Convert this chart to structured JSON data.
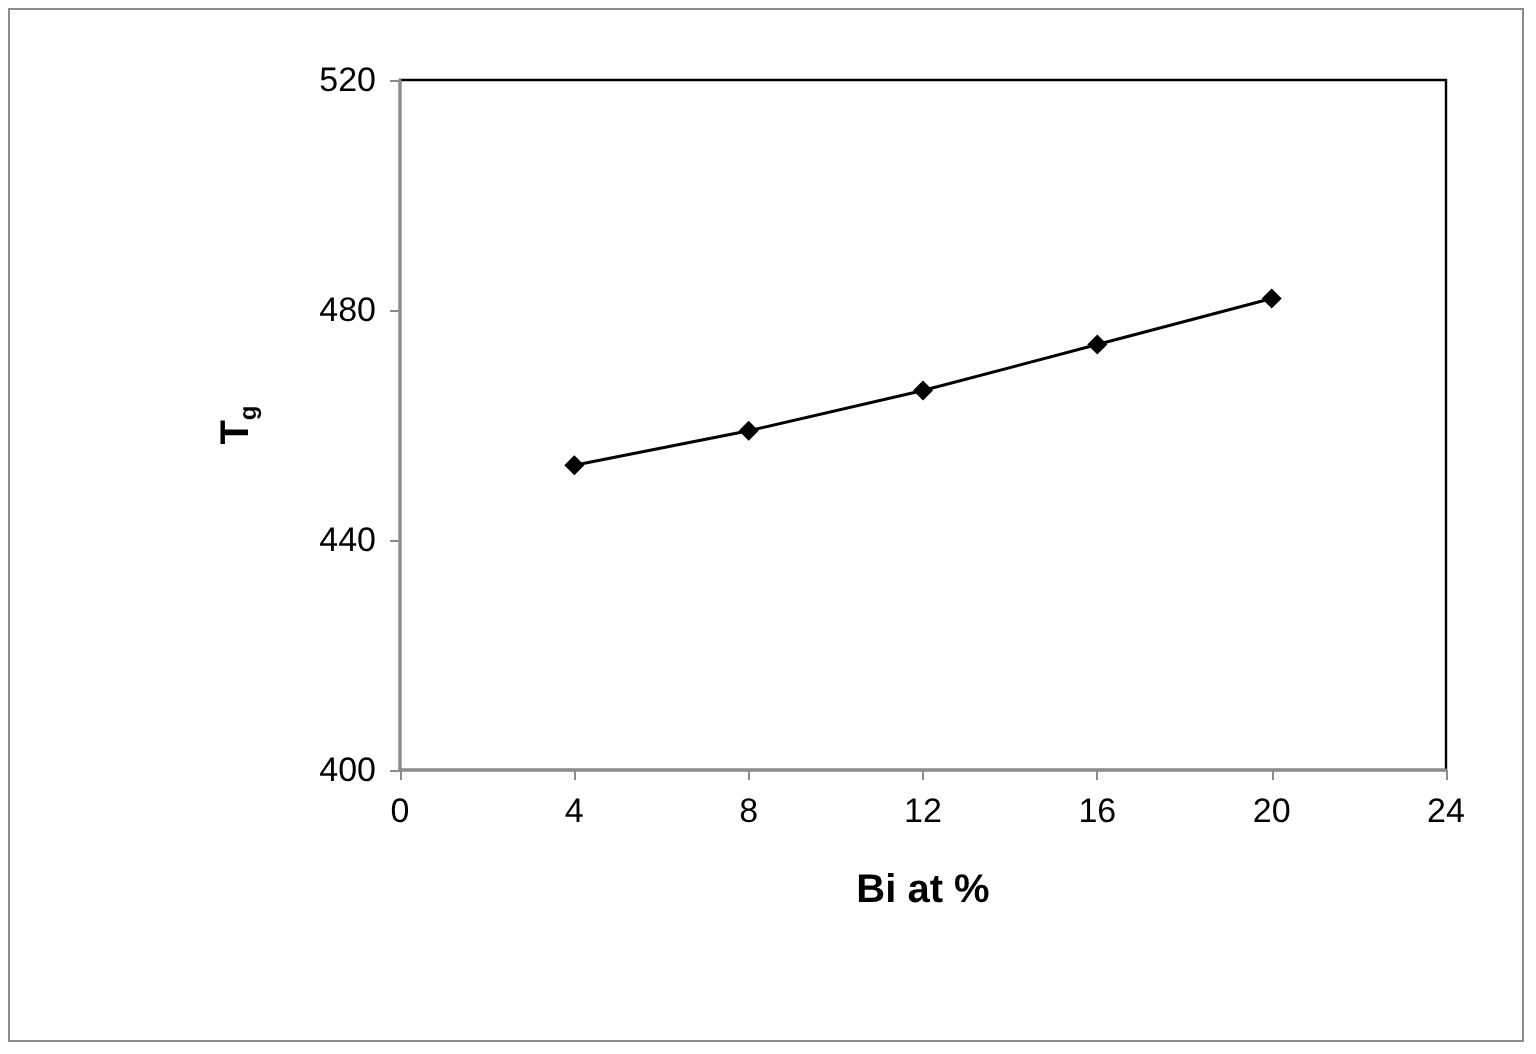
{
  "chart_data": {
    "type": "line",
    "xlabel": "Bi at %",
    "ylabel": "T$_{g}$",
    "x": [
      4,
      8,
      12,
      16,
      20
    ],
    "series": [
      {
        "color": "#000000",
        "values": [
          453,
          459,
          466,
          474,
          482
        ]
      }
    ],
    "xlim": [
      0,
      24
    ],
    "xticks": [
      0,
      4,
      8,
      12,
      16,
      20,
      24
    ],
    "ylim": [
      400,
      520
    ],
    "yticks": [
      400,
      440,
      480,
      520
    ],
    "grid": false,
    "marker": "diamond",
    "line_style": "solid"
  }
}
